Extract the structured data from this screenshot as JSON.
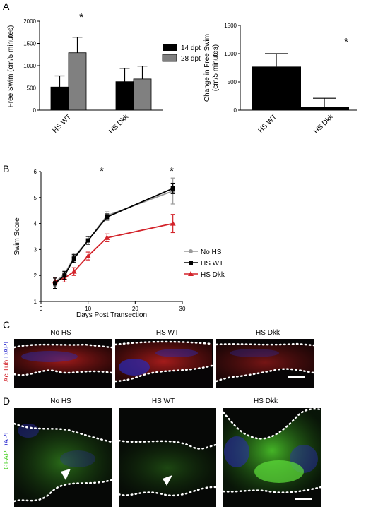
{
  "panels": {
    "a": "A",
    "b": "B",
    "c": "C",
    "d": "D"
  },
  "colors": {
    "black": "#000000",
    "gray": "#808080",
    "red": "#d3232a",
    "grayline": "#9a9a9a"
  },
  "chart_data": [
    {
      "id": "A1",
      "type": "bar",
      "ylabel": "Free Swim (cm/5 minutes)",
      "ylim": [
        0,
        2000
      ],
      "yticks": [
        "0",
        "500",
        "1000",
        "1500",
        "2000"
      ],
      "categories": [
        "HS WT",
        "HS Dkk"
      ],
      "series": [
        {
          "name": "14 dpt",
          "color": "#000000",
          "values": [
            520,
            640
          ],
          "errors": [
            250,
            300
          ]
        },
        {
          "name": "28 dpt",
          "color": "#808080",
          "values": [
            1290,
            700
          ],
          "errors": [
            350,
            290
          ]
        }
      ],
      "legend": "top-right",
      "annotations": [
        "*"
      ]
    },
    {
      "id": "A2",
      "type": "bar",
      "ylabel": "Change in Free Swim (cm/5 minutes)",
      "ylim": [
        0,
        1500
      ],
      "yticks": [
        "0",
        "500",
        "1000",
        "1500"
      ],
      "categories": [
        "HS WT",
        "HS Dkk"
      ],
      "series": [
        {
          "color": "#000000",
          "values": [
            770,
            60
          ],
          "errors": [
            230,
            150
          ]
        }
      ],
      "annotations": [
        "*"
      ]
    },
    {
      "id": "B",
      "type": "line",
      "xlabel": "Days Post Transection",
      "ylabel": "Swim Score",
      "xlim": [
        0,
        30
      ],
      "ylim": [
        1,
        6
      ],
      "xticks": [
        "0",
        "10",
        "20",
        "30"
      ],
      "yticks": [
        "1",
        "2",
        "3",
        "4",
        "5",
        "6"
      ],
      "x": [
        3,
        5,
        7,
        10,
        14,
        28
      ],
      "series": [
        {
          "name": "No HS",
          "color": "#9a9a9a",
          "values": [
            1.75,
            2.05,
            2.7,
            3.35,
            4.3,
            5.25
          ],
          "errors": [
            0.15,
            0.12,
            0.15,
            0.15,
            0.15,
            0.5
          ]
        },
        {
          "name": "HS WT",
          "color": "#000000",
          "values": [
            1.7,
            2.0,
            2.65,
            3.35,
            4.25,
            5.35
          ],
          "errors": [
            0.2,
            0.15,
            0.15,
            0.15,
            0.12,
            0.2
          ]
        },
        {
          "name": "HS Dkk",
          "color": "#d3232a",
          "values": [
            1.78,
            1.9,
            2.15,
            2.75,
            3.45,
            4.0
          ],
          "errors": [
            0.12,
            0.15,
            0.15,
            0.15,
            0.15,
            0.35
          ]
        }
      ],
      "legend": "bottom-right",
      "annotations": [
        "*",
        "*"
      ]
    }
  ],
  "panel_c": {
    "ylabel_parts": [
      "Ac Tub",
      "DAPI"
    ],
    "titles": [
      "No HS",
      "HS WT",
      "HS Dkk"
    ]
  },
  "panel_d": {
    "ylabel_parts": [
      "GFAP",
      "DAPI"
    ],
    "titles": [
      "No HS",
      "HS WT",
      "HS Dkk"
    ]
  }
}
